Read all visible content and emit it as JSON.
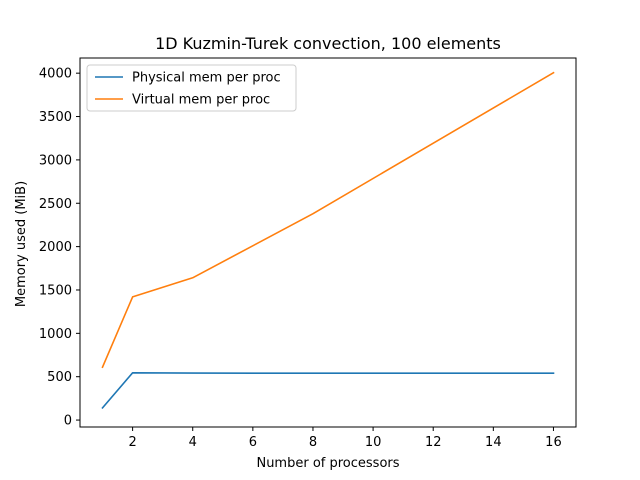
{
  "chart_data": {
    "type": "line",
    "title": "1D Kuzmin-Turek convection, 100 elements",
    "xlabel": "Number of processors",
    "ylabel": "Memory used (MiB)",
    "xlim": [
      0.25,
      16.75
    ],
    "ylim": [
      -80,
      4175
    ],
    "xticks": [
      2,
      4,
      6,
      8,
      10,
      12,
      14,
      16
    ],
    "yticks": [
      0,
      500,
      1000,
      1500,
      2000,
      2500,
      3000,
      3500,
      4000
    ],
    "grid": false,
    "legend_position": "upper-left",
    "series": [
      {
        "name": "Physical mem per proc",
        "color": "#1f77b4",
        "x": [
          1,
          2,
          4,
          8,
          16
        ],
        "y": [
          140,
          545,
          542,
          540,
          540
        ]
      },
      {
        "name": "Virtual mem per proc",
        "color": "#ff7f0e",
        "x": [
          1,
          2,
          4,
          8,
          16
        ],
        "y": [
          610,
          1420,
          1640,
          2380,
          4005
        ]
      }
    ]
  }
}
